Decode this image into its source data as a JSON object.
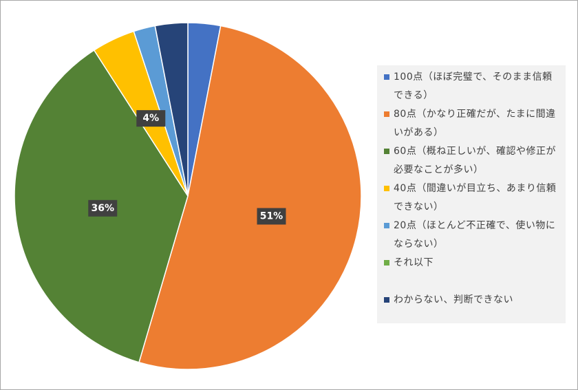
{
  "chart_data": {
    "type": "pie",
    "categories": [
      "100点（ほぼ完璧で、そのまま信頼できる）",
      "80点（かなり正確だが、たまに間違いがある）",
      "60点（概ね正しいが、確認や修正が必要なことが多い）",
      "40点（間違いが目立ち、あまり信頼できない）",
      "20点（ほとんど不正確で、使い物にならない）",
      "それ以下",
      "わからない、判断できない"
    ],
    "values": [
      3,
      51,
      36,
      4,
      2,
      0,
      3
    ],
    "value_labels": [
      null,
      "51%",
      "36%",
      "4%",
      null,
      null,
      null
    ],
    "colors": [
      "#4472c4",
      "#ed7d31",
      "#548235",
      "#ffc000",
      "#5b9bd5",
      "#70ad47",
      "#264478"
    ],
    "legend": "right"
  }
}
